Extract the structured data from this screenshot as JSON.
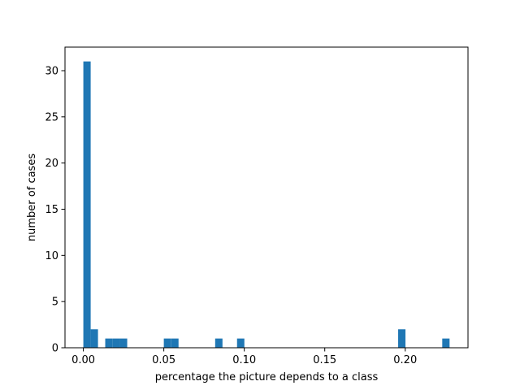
{
  "chart_data": {
    "type": "bar",
    "subtype": "histogram",
    "title": "",
    "xlabel": "percentage the picture depends to a class",
    "ylabel": "number of cases",
    "xlim": [
      -0.0114,
      0.239
    ],
    "ylim": [
      0,
      32.55
    ],
    "grid": false,
    "legend": "none",
    "bar_color": "#1f77b4",
    "bin_width": 0.00455,
    "bins": [
      {
        "start": 0.0,
        "value": 31
      },
      {
        "start": 0.00455,
        "value": 2
      },
      {
        "start": 0.0136,
        "value": 1
      },
      {
        "start": 0.0182,
        "value": 1
      },
      {
        "start": 0.0227,
        "value": 1
      },
      {
        "start": 0.05,
        "value": 1
      },
      {
        "start": 0.0546,
        "value": 1
      },
      {
        "start": 0.0819,
        "value": 1
      },
      {
        "start": 0.0955,
        "value": 1
      },
      {
        "start": 0.1956,
        "value": 2
      },
      {
        "start": 0.223,
        "value": 1
      }
    ],
    "x_ticks": [
      {
        "value": 0.0,
        "label": "0.00"
      },
      {
        "value": 0.05,
        "label": "0.05"
      },
      {
        "value": 0.1,
        "label": "0.10"
      },
      {
        "value": 0.15,
        "label": "0.15"
      },
      {
        "value": 0.2,
        "label": "0.20"
      }
    ],
    "y_ticks": [
      {
        "value": 0,
        "label": "0"
      },
      {
        "value": 5,
        "label": "5"
      },
      {
        "value": 10,
        "label": "10"
      },
      {
        "value": 15,
        "label": "15"
      },
      {
        "value": 20,
        "label": "20"
      },
      {
        "value": 25,
        "label": "25"
      },
      {
        "value": 30,
        "label": "30"
      }
    ]
  }
}
